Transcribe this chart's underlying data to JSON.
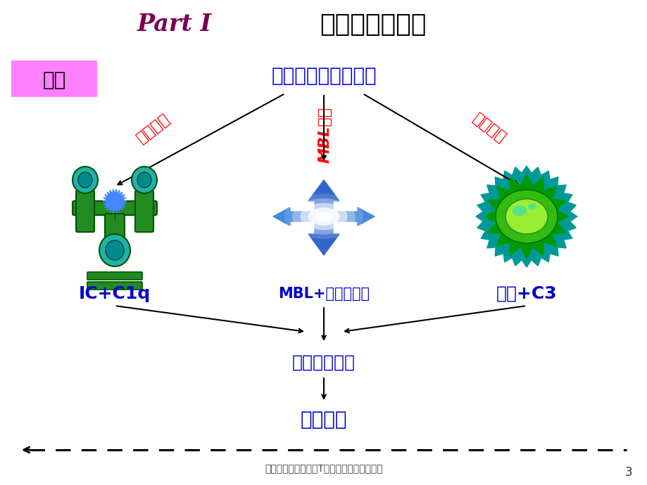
{
  "title_part": "Part I",
  "title_main": "  补体参与的反应",
  "subtitle": "补体激活的三条途径",
  "label_fuxi": "复习",
  "label_left": "经典途径",
  "label_mid": "MBL途径",
  "label_right": "旁路途径",
  "label_ic": "IC+C1q",
  "label_mbl": "MBL+病原体配基",
  "label_bacteria": "细菌+C3",
  "label_mac": "膜攻击复合物",
  "label_lysis": "细胞溶解",
  "footer": "免疫学补体参和反应T细胞数量和其功能检测",
  "page_num": "3",
  "bg_color": "#FFFFFF",
  "title_color1": "#7B0050",
  "title_color2": "#000000",
  "subtitle_color": "#0000FF",
  "fuxi_bg": "#FF80FF",
  "fuxi_color": "#000000",
  "pathway_color": "#FF0000",
  "label_color": "#0000CD",
  "arrow_color": "#000000",
  "green_dark": "#006400",
  "green_mid": "#228B22",
  "teal": "#008B8B",
  "blue_shape": "#4169E1"
}
